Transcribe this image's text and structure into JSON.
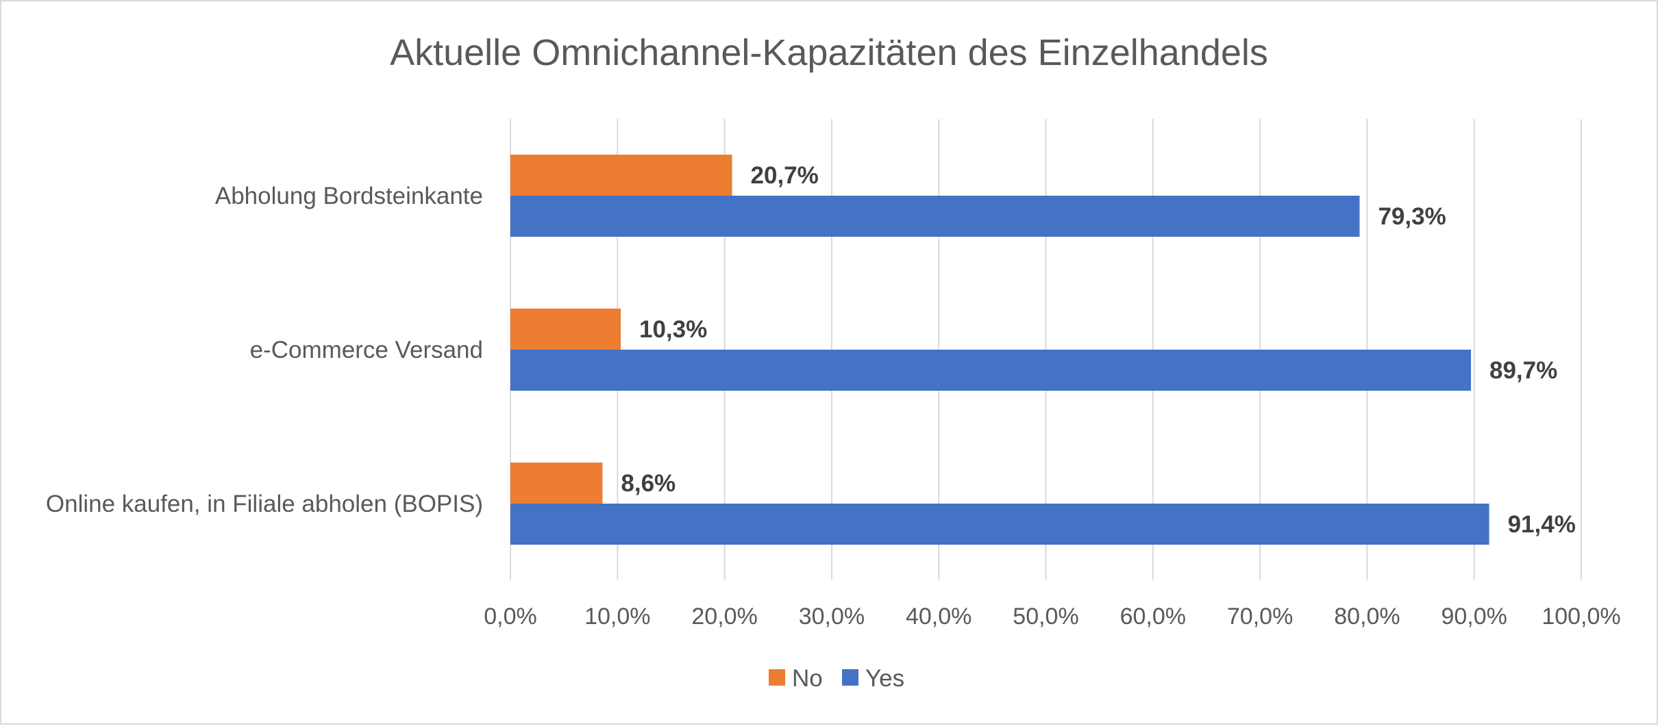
{
  "chart_data": {
    "type": "bar",
    "orientation": "horizontal",
    "title": "Aktuelle Omnichannel-Kapazitäten des Einzelhandels",
    "categories": [
      "Abholung Bordsteinkante",
      "e-Commerce Versand",
      "Online kaufen, in Filiale abholen (BOPIS)"
    ],
    "series": [
      {
        "name": "No",
        "color": "#ED7D31",
        "values": [
          20.7,
          10.3,
          8.6
        ],
        "labels": [
          "20,7%",
          "10,3%",
          "8,6%"
        ]
      },
      {
        "name": "Yes",
        "color": "#4472C4",
        "values": [
          79.3,
          89.7,
          91.4
        ],
        "labels": [
          "79,3%",
          "89,7%",
          "91,4%"
        ]
      }
    ],
    "xlim": [
      0,
      100
    ],
    "xticks": [
      0,
      10,
      20,
      30,
      40,
      50,
      60,
      70,
      80,
      90,
      100
    ],
    "xtick_labels": [
      "0,0%",
      "10,0%",
      "20,0%",
      "30,0%",
      "40,0%",
      "50,0%",
      "60,0%",
      "70,0%",
      "80,0%",
      "90,0%",
      "100,0%"
    ],
    "grid": "vertical",
    "legend_position": "bottom",
    "gridline_color": "#d9d9d9"
  }
}
